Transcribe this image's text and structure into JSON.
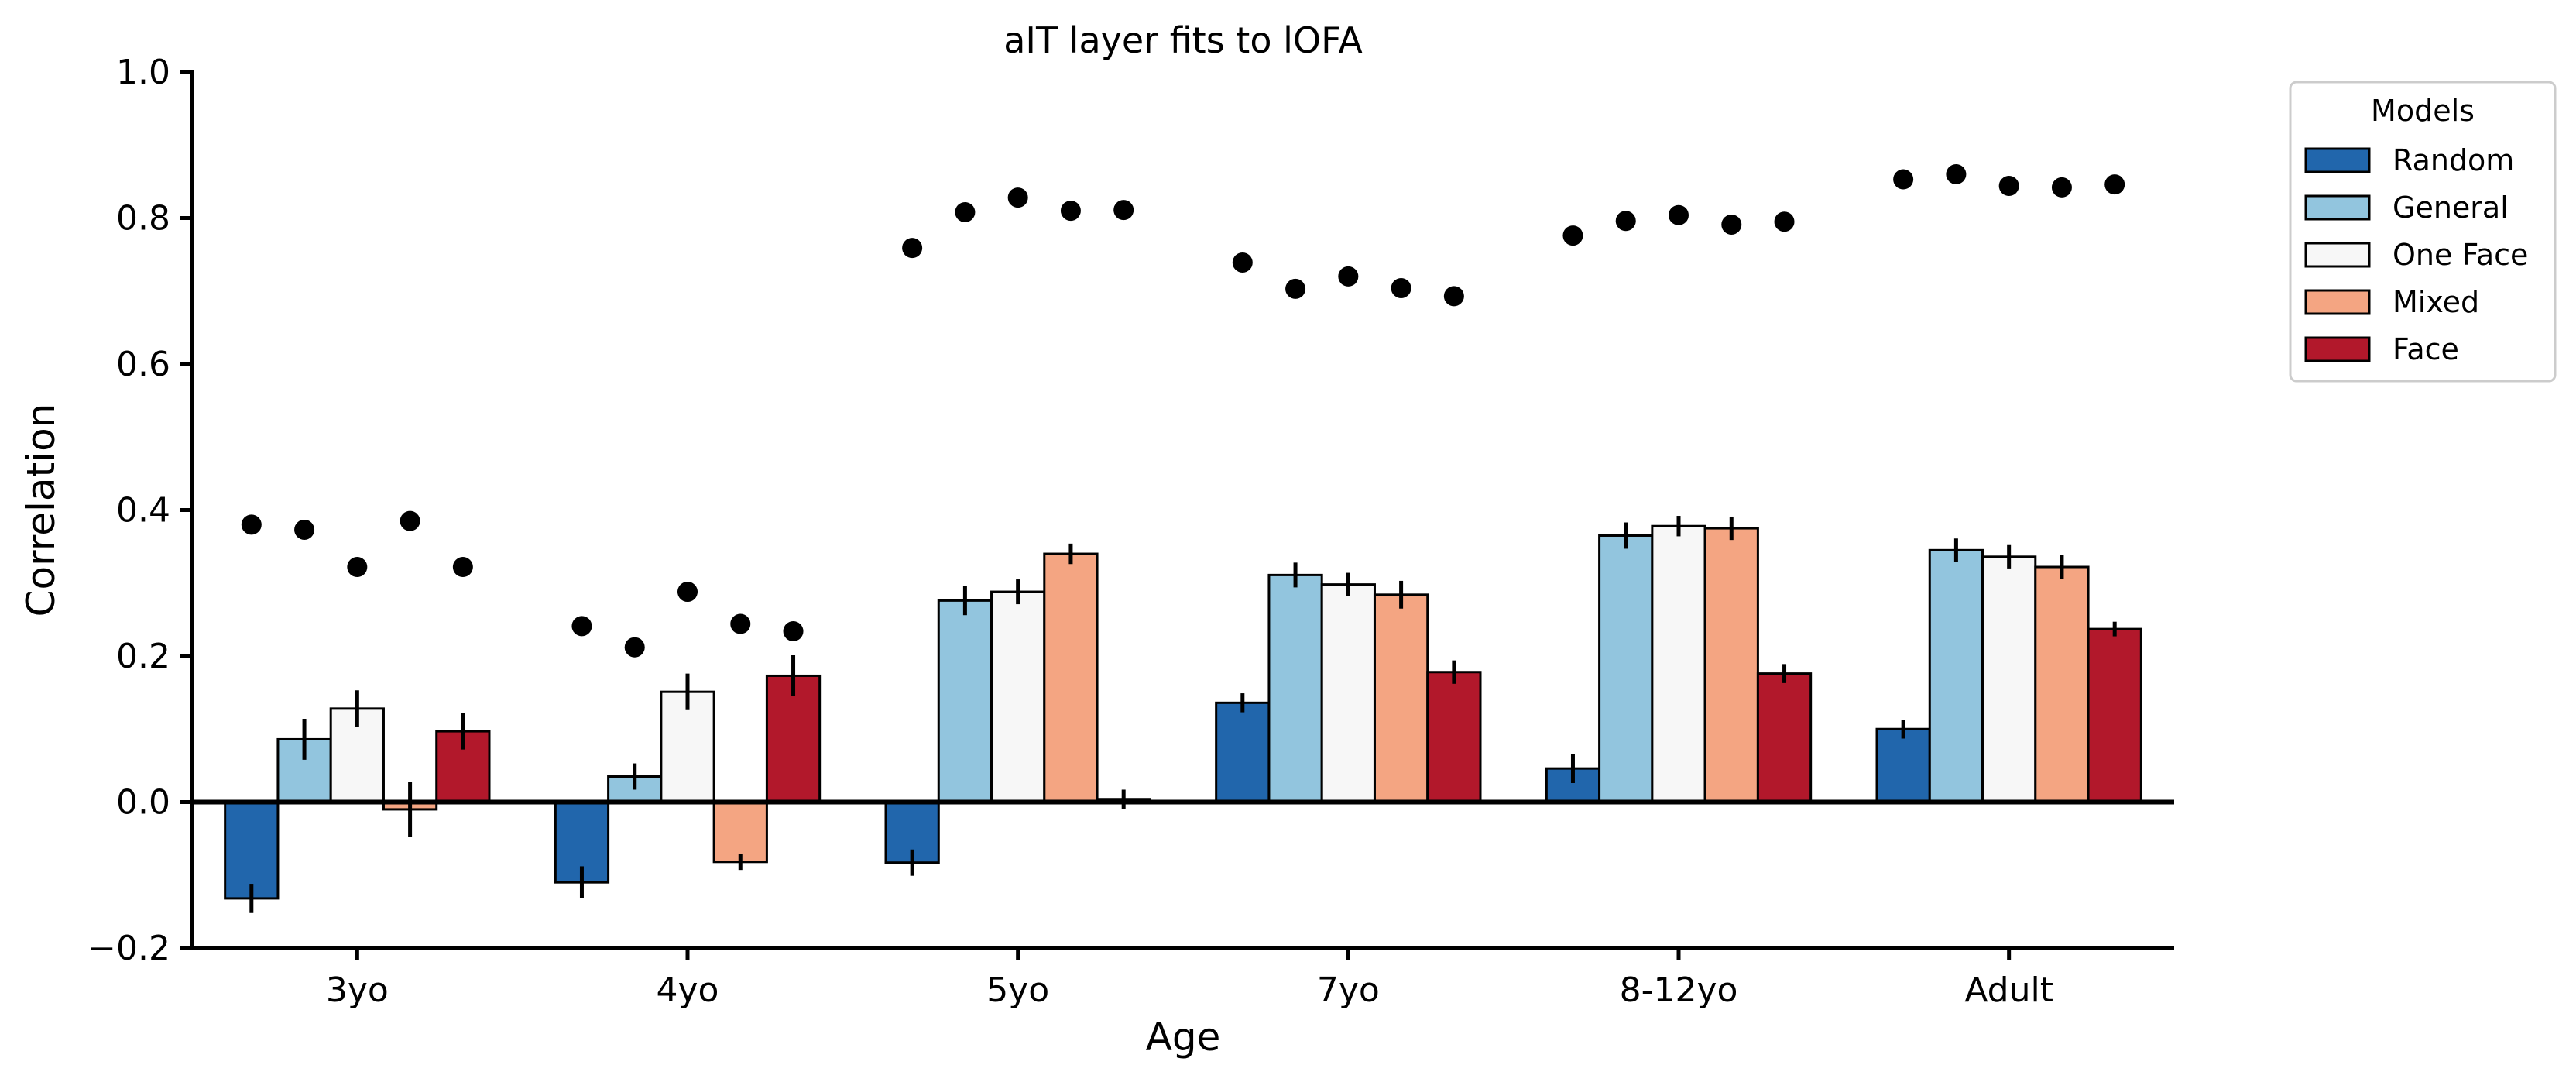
{
  "chart_data": {
    "type": "bar",
    "title": "aIT layer fits to lOFA",
    "xlabel": "Age",
    "ylabel": "Correlation",
    "ylim": [
      -0.2,
      1.0
    ],
    "yticks": [
      -0.2,
      0.0,
      0.2,
      0.4,
      0.6,
      0.8,
      1.0
    ],
    "ytick_labels": [
      "−0.2",
      "0.0",
      "0.2",
      "0.4",
      "0.6",
      "0.8",
      "1.0"
    ],
    "categories": [
      "3yo",
      "4yo",
      "5yo",
      "7yo",
      "8-12yo",
      "Adult"
    ],
    "legend": {
      "title": "Models",
      "position": "outside top-right"
    },
    "grid": false,
    "series": [
      {
        "name": "Random",
        "color": "#2166ac",
        "values": [
          -0.132,
          -0.11,
          -0.083,
          0.136,
          0.046,
          0.1
        ],
        "errors": [
          0.02,
          0.022,
          0.018,
          0.013,
          0.02,
          0.013
        ],
        "ceilings": [
          0.38,
          0.241,
          0.759,
          0.739,
          0.776,
          0.853
        ]
      },
      {
        "name": "General",
        "color": "#92c5de",
        "values": [
          0.086,
          0.035,
          0.276,
          0.311,
          0.365,
          0.345
        ],
        "errors": [
          0.028,
          0.018,
          0.02,
          0.017,
          0.018,
          0.016
        ],
        "ceilings": [
          0.373,
          0.212,
          0.808,
          0.703,
          0.796,
          0.86
        ]
      },
      {
        "name": "One Face",
        "color": "#f7f7f7",
        "values": [
          0.128,
          0.151,
          0.288,
          0.298,
          0.378,
          0.336
        ],
        "errors": [
          0.025,
          0.025,
          0.017,
          0.016,
          0.014,
          0.016
        ],
        "ceilings": [
          0.322,
          0.288,
          0.828,
          0.72,
          0.804,
          0.844
        ]
      },
      {
        "name": "Mixed",
        "color": "#f4a582",
        "values": [
          -0.01,
          -0.082,
          0.34,
          0.284,
          0.375,
          0.322
        ],
        "errors": [
          0.038,
          0.011,
          0.014,
          0.019,
          0.016,
          0.016
        ],
        "ceilings": [
          0.385,
          0.244,
          0.81,
          0.704,
          0.791,
          0.842
        ]
      },
      {
        "name": "Face",
        "color": "#b2182b",
        "values": [
          0.097,
          0.173,
          0.004,
          0.178,
          0.176,
          0.237
        ],
        "errors": [
          0.025,
          0.028,
          0.013,
          0.016,
          0.013,
          0.01
        ],
        "ceilings": [
          0.322,
          0.234,
          0.811,
          0.693,
          0.795,
          0.846
        ]
      }
    ]
  }
}
